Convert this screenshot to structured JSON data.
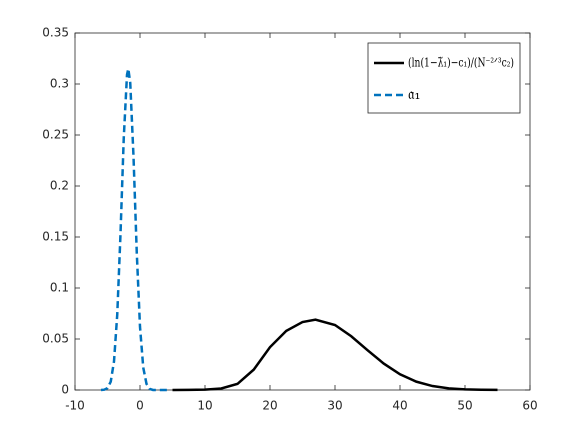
{
  "chart_data": {
    "type": "line",
    "xlim": [
      -10,
      60
    ],
    "xticks": [
      -10,
      0,
      10,
      20,
      30,
      40,
      50,
      60
    ],
    "ylim": [
      0,
      0.35
    ],
    "yticks": [
      0,
      0.05,
      0.1,
      0.15,
      0.2,
      0.25,
      0.3,
      0.35
    ],
    "legend": "upper right",
    "series": [
      {
        "name": "(ln(1−λ̃₁)−c₁)/(N⁻²ᐟ³c₂)",
        "color": "#000000",
        "dash": "solid",
        "x": [
          5,
          7.5,
          10,
          12.5,
          15,
          17.5,
          20,
          22.5,
          25,
          27,
          30,
          32.5,
          35,
          37.5,
          40,
          42.5,
          45,
          47.5,
          50,
          52.5,
          55
        ],
        "values": [
          0,
          0.0001,
          0.0004,
          0.0015,
          0.006,
          0.02,
          0.042,
          0.058,
          0.0666,
          0.069,
          0.0637,
          0.0527,
          0.039,
          0.0259,
          0.0154,
          0.0082,
          0.0039,
          0.0016,
          0.0006,
          0.0002,
          0.0001
        ]
      },
      {
        "name": "𝔞₁",
        "color": "#0072bd",
        "dash": "dashed",
        "x": [
          -6,
          -5.5,
          -5,
          -4.5,
          -4,
          -3.5,
          -3,
          -2.5,
          -2,
          -1.8,
          -1.5,
          -1,
          -0.5,
          0,
          0.5,
          1,
          1.5,
          2,
          2.5,
          3,
          3.5,
          4,
          4.5
        ],
        "values": [
          0,
          0.0003,
          0.0019,
          0.0082,
          0.028,
          0.074,
          0.153,
          0.247,
          0.309,
          0.315,
          0.301,
          0.229,
          0.135,
          0.062,
          0.022,
          0.006,
          0.001,
          0,
          0,
          0,
          0,
          0,
          0
        ]
      }
    ]
  }
}
